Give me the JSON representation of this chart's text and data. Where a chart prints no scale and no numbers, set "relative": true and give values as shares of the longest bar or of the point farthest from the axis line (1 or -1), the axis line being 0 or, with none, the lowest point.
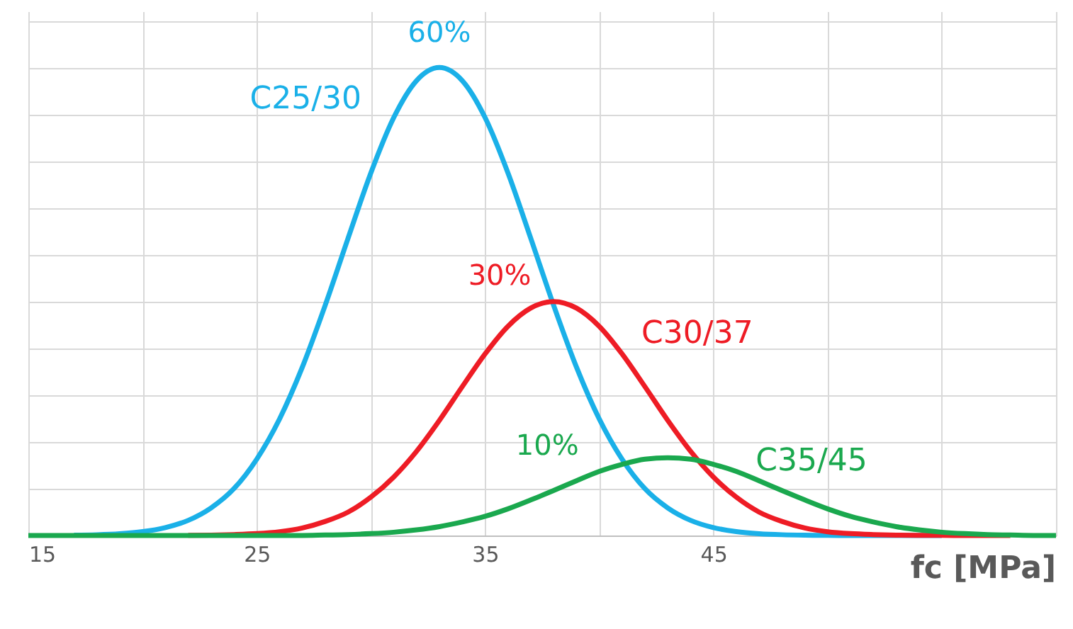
{
  "chart_data": {
    "type": "line",
    "relative": true,
    "xlabel": "fc [MPa]",
    "x": [
      15,
      16,
      17,
      18,
      19,
      20,
      21,
      22,
      23,
      24,
      25,
      26,
      27,
      28,
      29,
      30,
      31,
      32,
      33,
      34,
      35,
      36,
      37,
      38,
      39,
      40,
      41,
      42,
      43,
      44,
      45,
      46,
      47,
      48,
      49,
      50,
      51,
      52,
      53,
      54,
      55,
      56,
      57,
      58,
      59,
      60
    ],
    "series": [
      {
        "name": "C25/30",
        "color": "#1ab0e8",
        "values": [
          null,
          null,
          0.0007,
          0.0017,
          0.0039,
          0.0083,
          0.0169,
          0.0324,
          0.059,
          0.1,
          0.163,
          0.249,
          0.36,
          0.492,
          0.635,
          0.775,
          0.893,
          0.972,
          1,
          0.972,
          0.893,
          0.775,
          0.635,
          0.492,
          0.36,
          0.249,
          0.163,
          0.1,
          0.059,
          0.0324,
          0.0169,
          0.0083,
          0.0039,
          0.0017,
          0.0007,
          0.0003,
          0.0001,
          0,
          0,
          0,
          0,
          null,
          null,
          null,
          null,
          null
        ]
      },
      {
        "name": "C30/37",
        "color": "#ee1c25",
        "values": [
          null,
          null,
          null,
          null,
          null,
          null,
          null,
          0.0004,
          0.0008,
          0.002,
          0.004,
          0.008,
          0.016,
          0.03,
          0.05,
          0.082,
          0.125,
          0.18,
          0.246,
          0.318,
          0.388,
          0.447,
          0.486,
          0.5,
          0.486,
          0.447,
          0.388,
          0.318,
          0.246,
          0.18,
          0.125,
          0.082,
          0.05,
          0.03,
          0.016,
          0.008,
          0.004,
          0.002,
          0.0008,
          0.0004,
          0.0002,
          0,
          0,
          0,
          null,
          null
        ]
      },
      {
        "name": "C35/45",
        "color": "#1aa84e",
        "values": [
          0,
          0,
          0,
          0,
          0,
          0,
          0,
          0,
          0,
          0,
          0,
          0,
          0,
          0.001,
          0.002,
          0.004,
          0.007,
          0.012,
          0.019,
          0.029,
          0.041,
          0.057,
          0.076,
          0.096,
          0.117,
          0.137,
          0.152,
          0.163,
          0.166,
          0.163,
          0.152,
          0.137,
          0.117,
          0.096,
          0.076,
          0.057,
          0.041,
          0.029,
          0.019,
          0.012,
          0.007,
          0.004,
          0.002,
          0.001,
          0,
          0
        ]
      }
    ],
    "annotations": [
      "60%",
      "30%",
      "10%"
    ],
    "xlim": [
      15,
      60
    ],
    "xticks": [
      15,
      {
        "value": 20,
        "label": null
      },
      25,
      {
        "value": 30,
        "label": null
      },
      35,
      {
        "value": 40,
        "label": null
      },
      45,
      {
        "value": 50,
        "label": null
      },
      {
        "value": 55,
        "label": null
      },
      {
        "value": 60,
        "label": null
      }
    ],
    "grid": true,
    "legend": false,
    "marker": "none",
    "line_style": "solid"
  }
}
